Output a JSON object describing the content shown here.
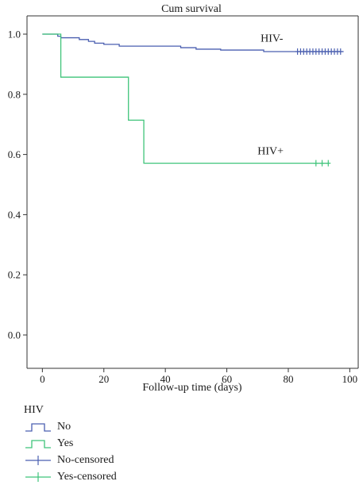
{
  "chart_data": {
    "type": "line",
    "title": "Cum survival",
    "xlabel": "Follow-up time (days)",
    "ylabel": "",
    "xlim": [
      0,
      100
    ],
    "ylim": [
      0.0,
      1.0
    ],
    "xticks": [
      0,
      20,
      40,
      60,
      80,
      100
    ],
    "yticks": [
      0.0,
      0.2,
      0.4,
      0.6,
      0.8,
      1.0
    ],
    "xtick_labels": [
      "0",
      "20",
      "40",
      "60",
      "80",
      "100"
    ],
    "ytick_labels": [
      "0.0",
      "0.2",
      "0.4",
      "0.6",
      "0.8",
      "1.0"
    ],
    "grid": false,
    "legend_title": "HIV",
    "legend_placement": "bottom-left",
    "series": [
      {
        "name": "No",
        "color": "#4a5fb0",
        "step_x": [
          0,
          5,
          6,
          12,
          15,
          17,
          20,
          25,
          45,
          50,
          58,
          72,
          98
        ],
        "step_y": [
          1.0,
          0.993,
          0.988,
          0.982,
          0.976,
          0.97,
          0.966,
          0.96,
          0.955,
          0.95,
          0.947,
          0.942,
          0.942
        ],
        "censored_name": "No-censored",
        "censored_x": [
          83,
          84,
          85,
          86,
          87,
          88,
          89,
          90,
          91,
          92,
          93,
          94,
          95,
          96,
          97
        ],
        "censored_y": 0.942,
        "annotation": "HIV-",
        "annotation_x": 71,
        "annotation_y": 0.975
      },
      {
        "name": "Yes",
        "color": "#3fc47a",
        "step_x": [
          0,
          6,
          28,
          33,
          93
        ],
        "step_y": [
          1.0,
          0.857,
          0.714,
          0.571,
          0.571
        ],
        "censored_name": "Yes-censored",
        "censored_x": [
          89,
          91,
          93
        ],
        "censored_y": 0.571,
        "annotation": "HIV+",
        "annotation_x": 70,
        "annotation_y": 0.6
      }
    ]
  }
}
